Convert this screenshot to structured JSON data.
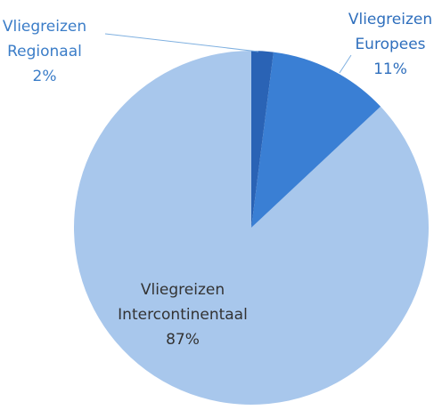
{
  "chart_data": {
    "type": "pie",
    "categories": [
      "Vliegreizen Regionaal",
      "Vliegreizen Europees",
      "Vliegreizen Intercontinentaal"
    ],
    "values": [
      2,
      11,
      87
    ],
    "value_labels": [
      "2%",
      "11%",
      "87%"
    ],
    "colors": [
      "#2a63b5",
      "#3a7fd4",
      "#a8c7ec"
    ],
    "label_colors": [
      "#3b7dc8",
      "#2f6fbd",
      "#333333"
    ]
  }
}
